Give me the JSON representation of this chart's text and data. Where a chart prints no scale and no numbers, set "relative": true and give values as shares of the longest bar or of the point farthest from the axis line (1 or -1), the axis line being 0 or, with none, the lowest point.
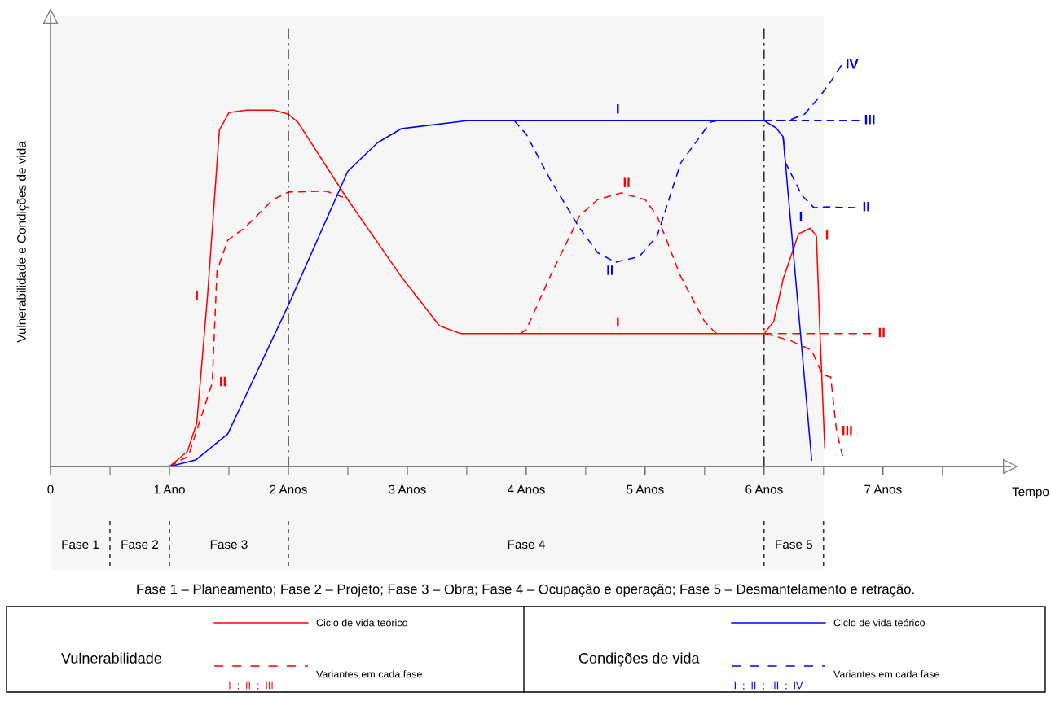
{
  "chart_data": {
    "type": "line",
    "relative": true,
    "xlabel": "Tempo",
    "ylabel": "Vulnerabilidade e Condições de vida",
    "xlim": [
      0,
      8.07
    ],
    "xticks": [
      0,
      {
        "value": 0.5,
        "label": null
      },
      {
        "value": 1,
        "label": "1 Ano"
      },
      {
        "value": 1.5,
        "label": null
      },
      {
        "value": 2,
        "label": "2 Anos"
      },
      {
        "value": 2.5,
        "label": null
      },
      {
        "value": 3,
        "label": "3 Anos"
      },
      {
        "value": 3.5,
        "label": null
      },
      {
        "value": 4,
        "label": "4 Anos"
      },
      {
        "value": 4.5,
        "label": null
      },
      {
        "value": 5,
        "label": "5 Anos"
      },
      {
        "value": 5.5,
        "label": null
      },
      {
        "value": 6,
        "label": "6 Anos"
      },
      {
        "value": 6.5,
        "label": null
      },
      {
        "value": 7,
        "label": "7 Anos"
      },
      {
        "value": 7.5,
        "label": null
      }
    ],
    "tick_labels": "x",
    "grid": false,
    "marker": "none",
    "series": [
      {
        "color": "#ff0000",
        "line_style": "solid",
        "x": [
          1.0,
          1.15,
          1.23,
          1.32,
          1.42,
          1.5,
          1.65,
          1.88,
          2.0,
          2.08,
          2.5,
          2.95,
          3.27,
          3.45,
          6.0,
          6.08,
          6.12,
          6.16,
          6.29,
          6.39,
          6.44,
          6.47,
          6.51
        ],
        "values": [
          0,
          0.037,
          0.108,
          0.424,
          0.838,
          0.882,
          0.888,
          0.888,
          0.878,
          0.858,
          0.665,
          0.473,
          0.351,
          0.331,
          0.331,
          0.361,
          0.412,
          0.467,
          0.58,
          0.594,
          0.574,
          0.331,
          0.047
        ]
      },
      {
        "color": "#ff0000",
        "line_style": "dashed",
        "x": [
          1.0,
          1.16,
          1.36,
          1.4,
          1.49,
          1.63,
          1.87,
          2.0,
          2.32,
          2.46
        ],
        "values": [
          0,
          0.026,
          0.209,
          0.487,
          0.564,
          0.594,
          0.665,
          0.684,
          0.686,
          0.671
        ]
      },
      {
        "color": "#ff0000",
        "line_style": "dashed",
        "x": [
          3.95,
          4.0,
          4.2,
          4.45,
          4.6,
          4.8,
          5.0,
          5.1,
          5.3,
          5.5,
          5.6
        ],
        "values": [
          0.331,
          0.341,
          0.473,
          0.625,
          0.665,
          0.682,
          0.665,
          0.625,
          0.473,
          0.361,
          0.331
        ]
      },
      {
        "color": "#ff0000",
        "line_style": "dashed",
        "x": [
          6.0,
          6.9
        ],
        "values": [
          0.331,
          0.331
        ]
      },
      {
        "color": "#ff0000",
        "line_style": "dashed",
        "x": [
          6.01,
          6.22,
          6.4,
          6.49,
          6.56,
          6.61,
          6.66
        ],
        "values": [
          0.331,
          0.314,
          0.29,
          0.229,
          0.223,
          0.087,
          0.026
        ]
      },
      {
        "color": "#0000ff",
        "line_style": "solid",
        "x": [
          1.0,
          1.22,
          1.49,
          2.0,
          2.5,
          2.75,
          2.95,
          3.5,
          6.0,
          6.1,
          6.16,
          6.4
        ],
        "values": [
          0,
          0.016,
          0.081,
          0.402,
          0.736,
          0.807,
          0.842,
          0.862,
          0.862,
          0.844,
          0.822,
          0.016
        ]
      },
      {
        "color": "#0000ff",
        "line_style": "dashed",
        "x": [
          3.9,
          4.0,
          4.2,
          4.45,
          4.6,
          4.75,
          4.95,
          5.1,
          5.3,
          5.55,
          5.6
        ],
        "values": [
          0.862,
          0.828,
          0.716,
          0.594,
          0.533,
          0.509,
          0.523,
          0.574,
          0.757,
          0.858,
          0.862
        ]
      },
      {
        "color": "#0000ff",
        "line_style": "dashed",
        "x": [
          6.16,
          6.18,
          6.32,
          6.42,
          6.53,
          6.77
        ],
        "values": [
          0.822,
          0.757,
          0.675,
          0.645,
          0.647,
          0.645
        ]
      },
      {
        "color": "#0000ff",
        "line_style": "dashed",
        "x": [
          6.0,
          6.8
        ],
        "values": [
          0.862,
          0.862
        ]
      },
      {
        "color": "#0000ff",
        "line_style": "dashed",
        "x": [
          6.0,
          6.2,
          6.34,
          6.46,
          6.56,
          6.65
        ],
        "values": [
          0.862,
          0.862,
          0.878,
          0.919,
          0.959,
          1.0
        ]
      }
    ],
    "ref_lines": [
      {
        "axis": "x",
        "value": 2
      },
      {
        "axis": "x",
        "value": 6
      }
    ],
    "bands": [
      {
        "axis": "x",
        "from": 0,
        "to": 0.5,
        "label": "Fase 1",
        "color": "#f6f6f6"
      },
      {
        "axis": "x",
        "from": 0.5,
        "to": 1,
        "label": "Fase 2",
        "color": "#f6f6f6"
      },
      {
        "axis": "x",
        "from": 1,
        "to": 2,
        "label": "Fase 3",
        "color": "#f6f6f6"
      },
      {
        "axis": "x",
        "from": 2,
        "to": 6,
        "label": "Fase 4",
        "color": "#f6f6f6"
      },
      {
        "axis": "x",
        "from": 6,
        "to": 6.5,
        "label": "Fase 5",
        "color": "#f6f6f6"
      }
    ],
    "annotations": [
      {
        "text": "I",
        "x": 1.32,
        "y": 0.424
      },
      {
        "text": "II",
        "x": 1.36,
        "y": 0.209
      },
      {
        "text": "II",
        "x": 4.8,
        "y": 0.682
      },
      {
        "text": "I",
        "x": 4.77,
        "y": 0.331
      },
      {
        "text": "I",
        "x": 6.44,
        "y": 0.574
      },
      {
        "text": "II",
        "x": 6.9,
        "y": 0.331
      },
      {
        "text": "III",
        "x": 6.61,
        "y": 0.087
      },
      {
        "text": "I",
        "x": 4.77,
        "y": 0.862
      },
      {
        "text": "II",
        "x": 4.75,
        "y": 0.509
      },
      {
        "text": "IV",
        "x": 6.65,
        "y": 1.0
      },
      {
        "text": "III",
        "x": 6.8,
        "y": 0.862
      },
      {
        "text": "II",
        "x": 6.77,
        "y": 0.645
      },
      {
        "text": "I",
        "x": 6.22,
        "y": 0.62
      },
      "Fase 1 – Planeamento; Fase 2 – Projeto; Fase 3 – Obra; Fase 4 – Ocupação e operação; Fase 5 – Desmantelamento e retração.",
      "Vulnerabilidade",
      "Ciclo de vida teórico",
      "Variantes em cada fase",
      "I  ;  II  ;  III",
      "Condições de vida",
      "Ciclo de vida teórico",
      "Variantes em cada fase",
      "I  ;  II  ;  III  ;  IV"
    ]
  }
}
